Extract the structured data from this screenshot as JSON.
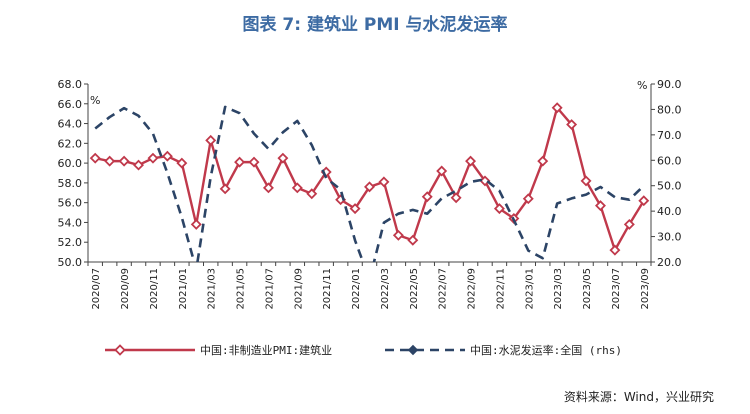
{
  "title": "图表 7:   建筑业 PMI 与水泥发运率",
  "source": "资料来源：Wind，兴业研究",
  "colors": {
    "title": "#3d6ba3",
    "series1": "#c0394b",
    "series2": "#2c4466",
    "axis": "#444444"
  },
  "chart_data": {
    "type": "line",
    "x": [
      "2020/07",
      "2020/08",
      "2020/09",
      "2020/10",
      "2020/11",
      "2020/12",
      "2021/01",
      "2021/02",
      "2021/03",
      "2021/04",
      "2021/05",
      "2021/06",
      "2021/07",
      "2021/08",
      "2021/09",
      "2021/10",
      "2021/11",
      "2021/12",
      "2022/01",
      "2022/02",
      "2022/03",
      "2022/04",
      "2022/05",
      "2022/06",
      "2022/07",
      "2022/08",
      "2022/09",
      "2022/10",
      "2022/11",
      "2022/12",
      "2023/01",
      "2023/02",
      "2023/03",
      "2023/04",
      "2023/05",
      "2023/06",
      "2023/07",
      "2023/08",
      "2023/09"
    ],
    "xticks": [
      "2020/07",
      "2020/09",
      "2020/11",
      "2021/01",
      "2021/03",
      "2021/05",
      "2021/07",
      "2021/09",
      "2021/11",
      "2022/01",
      "2022/03",
      "2022/05",
      "2022/07",
      "2022/09",
      "2022/11",
      "2023/01",
      "2023/03",
      "2023/05",
      "2023/07",
      "2023/09"
    ],
    "y_left": {
      "min": 50,
      "max": 68,
      "step": 2,
      "unit": "%"
    },
    "y_right": {
      "min": 20,
      "max": 90,
      "step": 10,
      "unit": "%"
    },
    "series": [
      {
        "name": "中国:非制造业PMI:建筑业",
        "axis": "left",
        "style": "solid",
        "values": [
          60.5,
          60.2,
          60.2,
          59.8,
          60.5,
          60.7,
          60.0,
          53.8,
          62.3,
          57.4,
          60.1,
          60.1,
          57.5,
          60.5,
          57.5,
          56.9,
          59.1,
          56.3,
          55.4,
          57.6,
          58.1,
          52.7,
          52.2,
          56.6,
          59.2,
          56.5,
          60.2,
          58.2,
          55.4,
          54.4,
          56.4,
          60.2,
          65.6,
          63.9,
          58.2,
          55.7,
          51.2,
          53.8,
          56.2
        ]
      },
      {
        "name": "中国:水泥发运率:全国 (rhs)",
        "axis": "right",
        "style": "dashed",
        "values": [
          72.5,
          77.0,
          80.5,
          77.5,
          70.5,
          55.0,
          37.5,
          17.0,
          53.5,
          81.0,
          78.5,
          70.5,
          64.5,
          71.0,
          75.5,
          66.0,
          53.0,
          48.5,
          28.5,
          13.0,
          35.5,
          39.0,
          40.5,
          39.0,
          45.0,
          48.0,
          51.5,
          52.5,
          48.0,
          36.5,
          24.5,
          21.5,
          43.0,
          45.0,
          46.5,
          49.5,
          45.5,
          44.5,
          50.0
        ]
      }
    ]
  }
}
